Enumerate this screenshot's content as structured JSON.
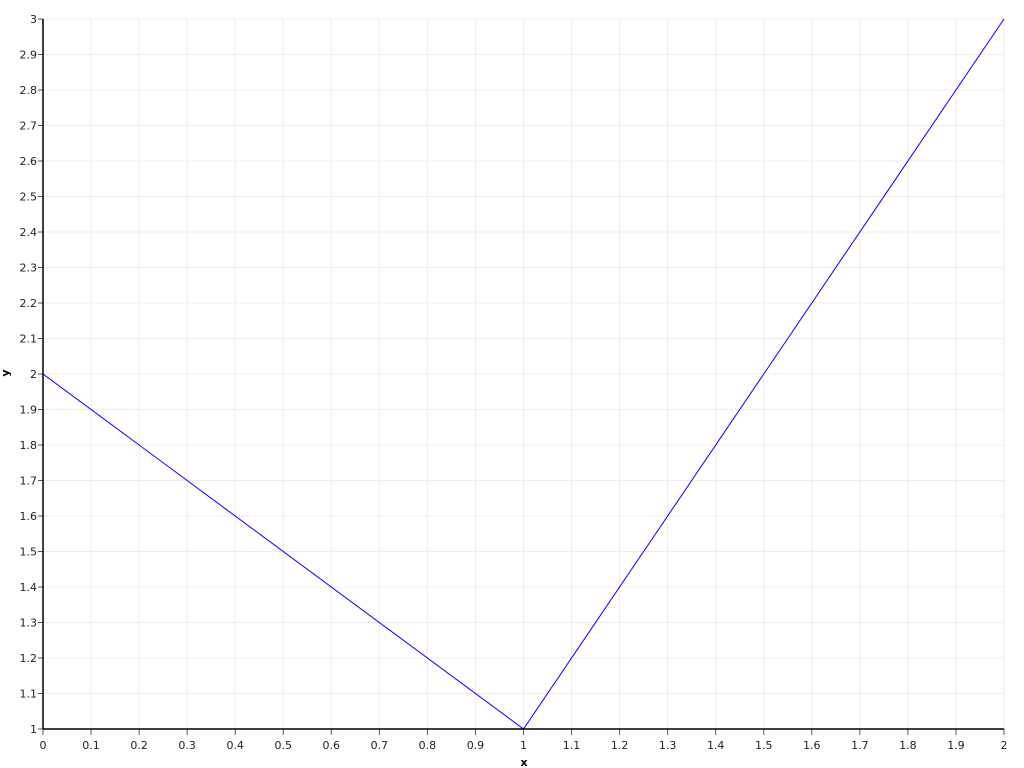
{
  "chart_data": {
    "type": "line",
    "title": "",
    "xlabel": "x",
    "ylabel": "y",
    "xlim": [
      0,
      2
    ],
    "ylim": [
      1,
      3
    ],
    "grid": true,
    "x_ticks": [
      "0",
      "0.1",
      "0.2",
      "0.3",
      "0.4",
      "0.5",
      "0.6",
      "0.7",
      "0.8",
      "0.9",
      "1",
      "1.1",
      "1.2",
      "1.3",
      "1.4",
      "1.5",
      "1.6",
      "1.7",
      "1.8",
      "1.9",
      "2"
    ],
    "y_ticks": [
      "1",
      "1.1",
      "1.2",
      "1.3",
      "1.4",
      "1.5",
      "1.6",
      "1.7",
      "1.8",
      "1.9",
      "2",
      "2.1",
      "2.2",
      "2.3",
      "2.4",
      "2.5",
      "2.6",
      "2.7",
      "2.8",
      "2.9",
      "3"
    ],
    "series": [
      {
        "x": [
          0,
          1,
          2
        ],
        "y": [
          2,
          1,
          3
        ],
        "color": "#0000ff"
      }
    ],
    "colors": {
      "grid": "#ececec",
      "axis": "#000000"
    }
  }
}
